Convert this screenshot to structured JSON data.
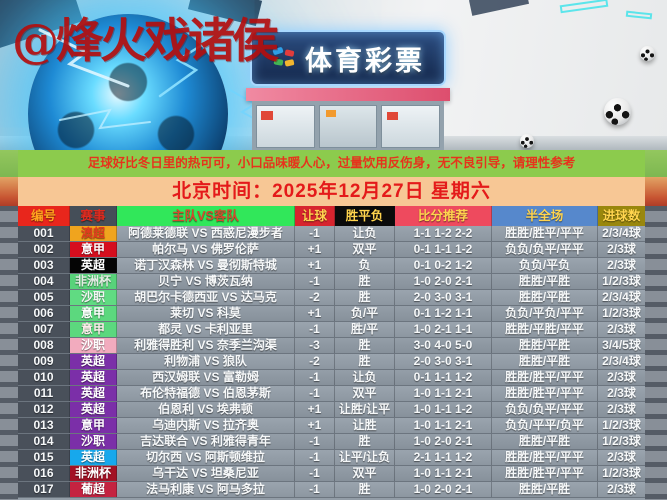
{
  "watermark": "@烽火戏诸侯",
  "storefront": {
    "sign": "体育彩票"
  },
  "notice": {
    "text": "足球好比冬日里的热可可，小口品味暖人心，过量饮用反伤身，无不良引导，请理性参考",
    "bg": "#8ccb4d",
    "fg": "#e6331c"
  },
  "date_bar": {
    "text": "北京时间：2025年12月27日 星期六",
    "bg": "#f7c795",
    "fg": "#e41a1a"
  },
  "table": {
    "columns": [
      {
        "key": "id",
        "label": "编号",
        "bg": "#e8261c",
        "fg": "#ffa51e"
      },
      {
        "key": "league",
        "label": "赛事",
        "bg": "#454e58",
        "fg": "#e02a1e"
      },
      {
        "key": "match",
        "label": "主队VS客队",
        "bg": "#31e75a",
        "fg": "#d24a2e"
      },
      {
        "key": "handicap",
        "label": "让球",
        "bg": "#d7242e",
        "fg": "#ffd44e"
      },
      {
        "key": "wdl",
        "label": "胜平负",
        "bg": "#0b0b0b",
        "fg": "#ffd44e"
      },
      {
        "key": "scores",
        "label": "比分推荐",
        "bg": "#ee4a5e",
        "fg": "#ffd44e"
      },
      {
        "key": "halffull",
        "label": "半全场",
        "bg": "#5688cc",
        "fg": "#ffd44e"
      },
      {
        "key": "goals",
        "label": "进球数",
        "bg": "#99870d",
        "fg": "#ffd44e"
      }
    ],
    "rows": [
      {
        "id": "001",
        "league": "澳超",
        "league_bg": "#f0a41e",
        "league_fg": "#e03c1e",
        "match": "阿德莱德联 VS 西惑尼漫步者",
        "handicap": "-1",
        "wdl": "让负",
        "scores": "1-1 1-2 2-2",
        "halffull": "胜胜/胜平/平平",
        "goals": "2/3/4球"
      },
      {
        "id": "002",
        "league": "意甲",
        "league_bg": "#d60e1e",
        "league_fg": "#ffffff",
        "match": "帕尔马 VS 佛罗伦萨",
        "handicap": "+1",
        "wdl": "双平",
        "scores": "0-1 1-1 1-2",
        "halffull": "负负/负平/平平",
        "goals": "2/3球"
      },
      {
        "id": "003",
        "league": "英超",
        "league_bg": "#050505",
        "league_fg": "#ffffff",
        "match": "诺丁汉森林 VS 曼彻斯特城",
        "handicap": "+1",
        "wdl": "负",
        "scores": "0-1 0-2 1-2",
        "halffull": "负负/平负",
        "goals": "2/3球"
      },
      {
        "id": "004",
        "league": "非洲杯",
        "league_bg": "#58d37a",
        "league_fg": "#e4ece4",
        "match": "贝宁 VS 博茨瓦纳",
        "handicap": "-1",
        "wdl": "胜",
        "scores": "1-0 2-0 2-1",
        "halffull": "胜胜/平胜",
        "goals": "1/2/3球"
      },
      {
        "id": "005",
        "league": "沙职",
        "league_bg": "#60db82",
        "league_fg": "#f5f5f5",
        "match": "胡巴尔卡德西亚 VS 达马克",
        "handicap": "-2",
        "wdl": "胜",
        "scores": "2-0 3-0 3-1",
        "halffull": "胜胜/平胜",
        "goals": "2/3/4球"
      },
      {
        "id": "006",
        "league": "意甲",
        "league_bg": "#5cd87e",
        "league_fg": "#ffffff",
        "match": "莱切 VS 科莫",
        "handicap": "+1",
        "wdl": "负/平",
        "scores": "0-1 1-2 1-1",
        "halffull": "负负/平负/平平",
        "goals": "1/2/3球"
      },
      {
        "id": "007",
        "league": "意甲",
        "league_bg": "#5cd87e",
        "league_fg": "#ffecec",
        "match": "都灵 VS 卡利亚里",
        "handicap": "-1",
        "wdl": "胜/平",
        "scores": "1-0 2-1 1-1",
        "halffull": "胜胜/平胜/平平",
        "goals": "2/3球"
      },
      {
        "id": "008",
        "league": "沙职",
        "league_bg": "#f2abbe",
        "league_fg": "#ffffff",
        "match": "利雅得胜利 VS 奈季兰沟渠",
        "handicap": "-3",
        "wdl": "胜",
        "scores": "3-0 4-0 5-0",
        "halffull": "胜胜/平胜",
        "goals": "3/4/5球"
      },
      {
        "id": "009",
        "league": "英超",
        "league_bg": "#7b2fa8",
        "league_fg": "#ffffff",
        "match": "利物浦 VS 狼队",
        "handicap": "-2",
        "wdl": "胜",
        "scores": "2-0 3-0 3-1",
        "halffull": "胜胜/平胜",
        "goals": "2/3/4球"
      },
      {
        "id": "010",
        "league": "英超",
        "league_bg": "#7b2fa8",
        "league_fg": "#ffffff",
        "match": "西汉姆联 VS 富勒姆",
        "handicap": "-1",
        "wdl": "让负",
        "scores": "0-1 1-1 1-2",
        "halffull": "胜胜/胜平/平平",
        "goals": "2/3球"
      },
      {
        "id": "011",
        "league": "英超",
        "league_bg": "#7b2fa8",
        "league_fg": "#ffffff",
        "match": "布伦特福德 VS 伯恩茅斯",
        "handicap": "-1",
        "wdl": "双平",
        "scores": "1-0 1-1 2-1",
        "halffull": "胜胜/胜平/平平",
        "goals": "2/3球"
      },
      {
        "id": "012",
        "league": "英超",
        "league_bg": "#7b2fa8",
        "league_fg": "#ffffff",
        "match": "伯恩利 VS 埃弗顿",
        "handicap": "+1",
        "wdl": "让胜/让平",
        "scores": "1-0 1-1 1-2",
        "halffull": "负负/负平/平平",
        "goals": "2/3球"
      },
      {
        "id": "013",
        "league": "意甲",
        "league_bg": "#7b2fa8",
        "league_fg": "#ffffff",
        "match": "乌迪内斯 VS 拉齐奥",
        "handicap": "+1",
        "wdl": "让胜",
        "scores": "1-0 1-1 2-1",
        "halffull": "负负/平平/负平",
        "goals": "1/2/3球"
      },
      {
        "id": "014",
        "league": "沙职",
        "league_bg": "#7b2fa8",
        "league_fg": "#ffffff",
        "match": "吉达联合 VS 利雅得青年",
        "handicap": "-1",
        "wdl": "胜",
        "scores": "1-0 2-0 2-1",
        "halffull": "胜胜/平胜",
        "goals": "1/2/3球"
      },
      {
        "id": "015",
        "league": "英超",
        "league_bg": "#17a8ec",
        "league_fg": "#ffffff",
        "match": "切尔西 VS 阿斯顿维拉",
        "handicap": "-1",
        "wdl": "让平/让负",
        "scores": "2-1 1-1 1-2",
        "halffull": "胜胜/胜平/平平",
        "goals": "2/3球"
      },
      {
        "id": "016",
        "league": "非洲杯",
        "league_bg": "#a31124",
        "league_fg": "#ffffff",
        "match": "乌干达 VS 坦桑尼亚",
        "handicap": "-1",
        "wdl": "双平",
        "scores": "1-0 1-1 2-1",
        "halffull": "胜胜/胜平/平平",
        "goals": "1/2/3球"
      },
      {
        "id": "017",
        "league": "葡超",
        "league_bg": "#c42340",
        "league_fg": "#ffffff",
        "match": "法马利康 VS 阿马多拉",
        "handicap": "-1",
        "wdl": "胜",
        "scores": "1-0 2-0 2-1",
        "halffull": "胜胜/平胜",
        "goals": "2/3球"
      }
    ]
  }
}
